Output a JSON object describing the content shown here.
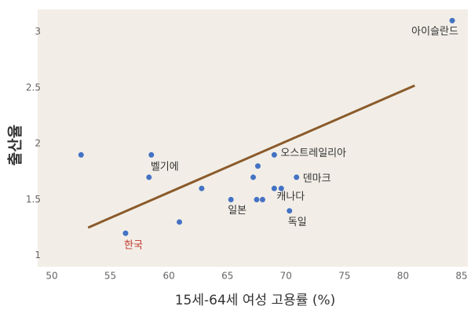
{
  "chart_data": {
    "type": "scatter",
    "xlabel": "15세-64세 여성 고용률 (%)",
    "ylabel": "출산율",
    "xlim": [
      50,
      85
    ],
    "xticks": [
      50,
      55,
      60,
      65,
      70,
      75,
      80,
      85
    ],
    "ylim": [
      0.9,
      3.2
    ],
    "yticks": [
      1,
      1.5,
      2,
      2.5,
      3
    ],
    "color": "#4472c4",
    "x": [
      52.5,
      58.5,
      58.3,
      56.3,
      60.9,
      62.8,
      65.3,
      67.2,
      67.6,
      67.5,
      68.0,
      69.0,
      69.0,
      69.6,
      70.3,
      70.9,
      84.2
    ],
    "values": [
      1.9,
      1.9,
      1.7,
      1.2,
      1.3,
      1.6,
      1.5,
      1.7,
      1.8,
      1.5,
      1.5,
      1.9,
      1.6,
      1.6,
      1.4,
      1.7,
      3.1
    ],
    "labels": [
      null,
      null,
      "벨기에",
      "한국",
      null,
      null,
      "일본",
      null,
      null,
      null,
      null,
      "오스트레일리아",
      null,
      "캐나다",
      "독일",
      "덴마크",
      "아이슬란드"
    ],
    "label_colors": [
      null,
      null,
      "#333333",
      "#c0392b",
      null,
      null,
      "#333333",
      null,
      null,
      null,
      null,
      "#333333",
      null,
      "#333333",
      "#333333",
      "#333333",
      "#333333"
    ],
    "trendline": {
      "color": "#8b5a2b",
      "x": [
        53.1,
        81.0
      ],
      "values": [
        1.25,
        2.52
      ]
    }
  }
}
